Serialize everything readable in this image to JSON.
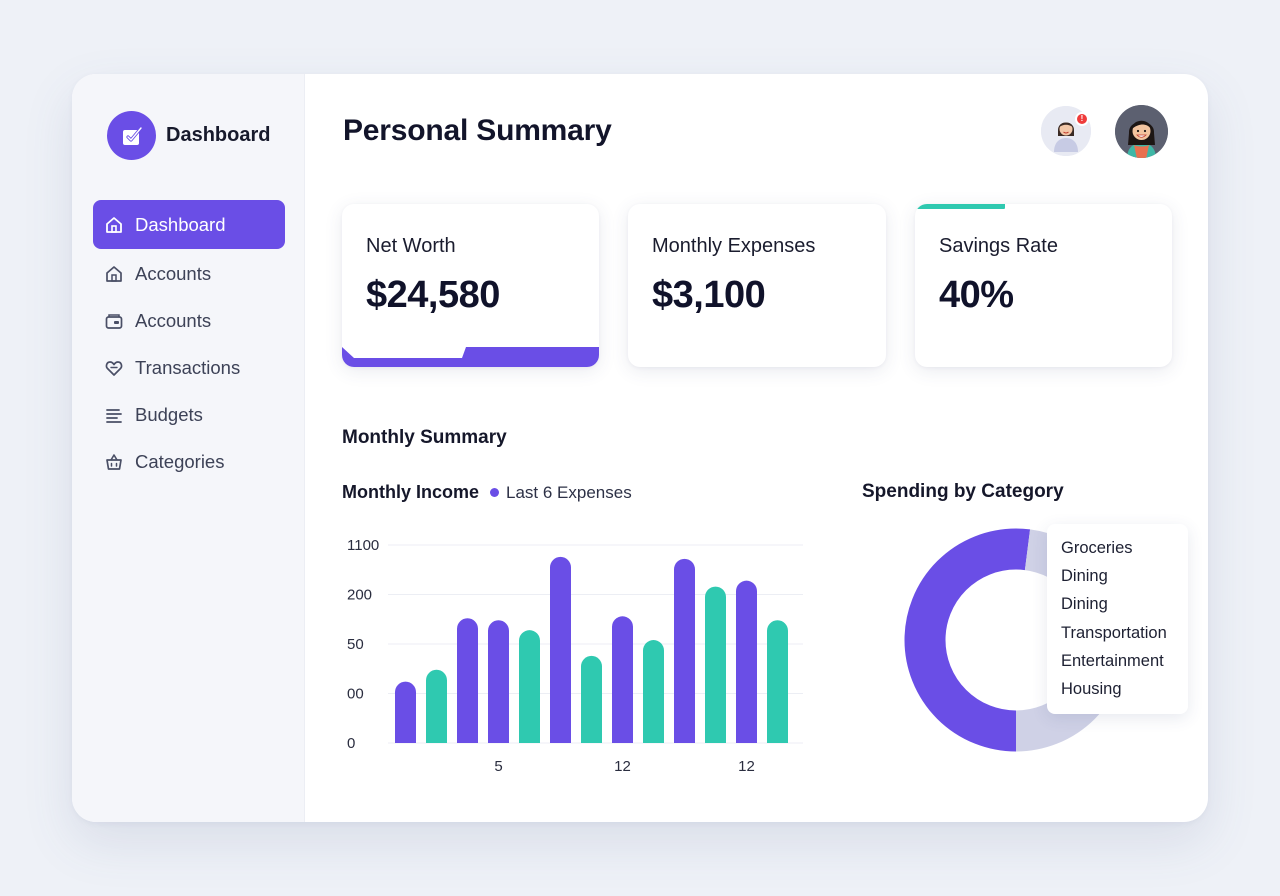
{
  "brand": {
    "title": "Dashboard",
    "logo_icon": "check-calendar-icon"
  },
  "sidebar": {
    "items": [
      {
        "label": "Dashboard",
        "icon": "home-icon",
        "active": true
      },
      {
        "label": "Accounts",
        "icon": "home-outline-icon",
        "active": false
      },
      {
        "label": "Accounts",
        "icon": "wallet-icon",
        "active": false
      },
      {
        "label": "Transactions",
        "icon": "heart-chat-icon",
        "active": false
      },
      {
        "label": "Budgets",
        "icon": "list-icon",
        "active": false
      },
      {
        "label": "Categories",
        "icon": "basket-icon",
        "active": false
      }
    ]
  },
  "header": {
    "title": "Personal Summary",
    "notification_badge": "!"
  },
  "cards": [
    {
      "label": "Net Worth",
      "value": "$24,580"
    },
    {
      "label": "Monthly Expenses",
      "value": "$3,100"
    },
    {
      "label": "Savings Rate",
      "value": "40%"
    }
  ],
  "section": {
    "title": "Monthly Summary"
  },
  "bar_chart": {
    "title": "Monthly Income",
    "legend_label": "Last 6 Expenses"
  },
  "pie": {
    "title": "Spending by Category"
  },
  "colors": {
    "accent": "#6a4ee6",
    "teal": "#2fc9b0",
    "donut_light": "#cfd1e6",
    "badge": "#ef3b3b"
  },
  "chart_data": [
    {
      "type": "bar",
      "title": "Monthly Income",
      "y_tick_labels": [
        "0",
        "00",
        "50",
        "200",
        "1100"
      ],
      "x_tick_labels": [
        {
          "label": "5",
          "at_bar": 3.5
        },
        {
          "label": "12",
          "at_bar": 7.5
        },
        {
          "label": "12",
          "at_bar": 11.5
        }
      ],
      "grid": true,
      "values": [
        0.31,
        0.37,
        0.63,
        0.62,
        0.57,
        0.94,
        0.44,
        0.64,
        0.52,
        0.93,
        0.79,
        0.82,
        0.62
      ],
      "bar_colors": [
        "purple",
        "teal",
        "purple",
        "purple",
        "teal",
        "purple",
        "teal",
        "purple",
        "teal",
        "purple",
        "teal",
        "purple",
        "teal"
      ],
      "value_scale": "fraction of top gridline"
    },
    {
      "type": "pie",
      "title": "Spending by Category",
      "legend": [
        "Groceries",
        "Dining",
        "Dining",
        "Transportation",
        "Entertainment",
        "Housing"
      ],
      "slices": [
        {
          "color": "purple",
          "fraction": 0.52
        },
        {
          "color": "light",
          "fraction": 0.48
        }
      ]
    }
  ]
}
